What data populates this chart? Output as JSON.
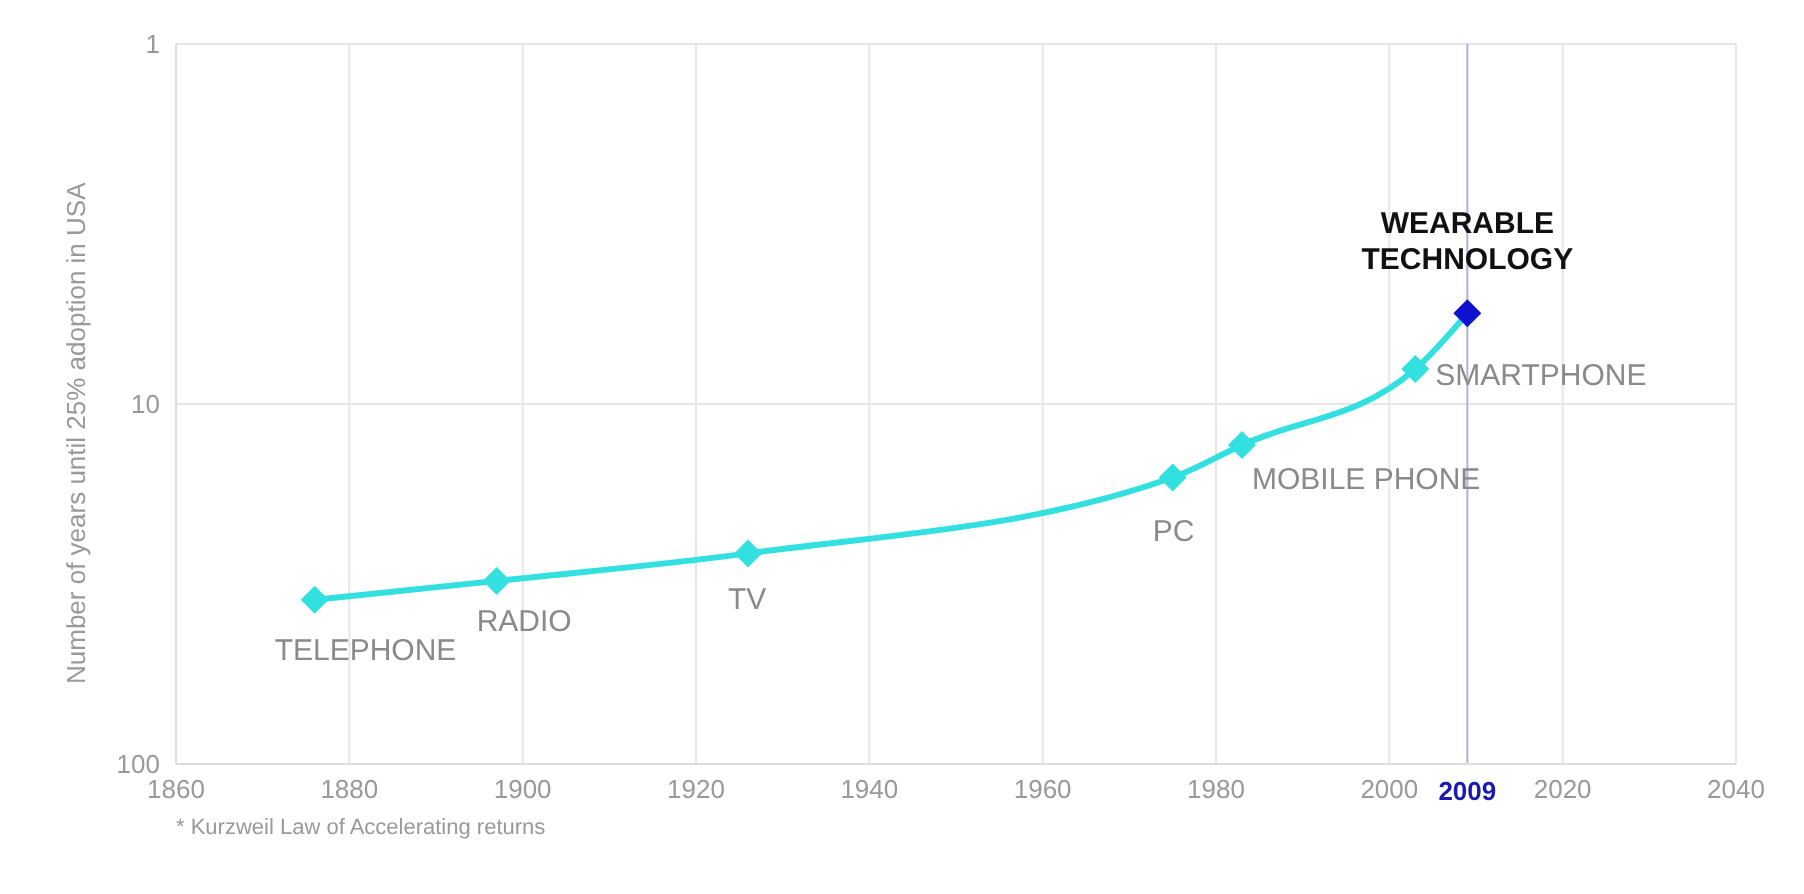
{
  "chart_data": {
    "type": "line",
    "ylabel": "Number of years until 25% adoption in USA",
    "x": [
      1876,
      1897,
      1926,
      1975,
      1983,
      2003,
      2009
    ],
    "series": [
      {
        "color": "#33e0e0",
        "colors": [
          "#33e0e0",
          "#33e0e0",
          "#33e0e0",
          "#33e0e0",
          "#33e0e0",
          "#33e0e0",
          "#1010d0"
        ],
        "values": [
          35,
          31,
          26,
          16,
          13,
          8,
          5.6
        ]
      }
    ],
    "xlim": [
      1860,
      2040
    ],
    "xticks": [
      1860,
      1880,
      1900,
      1920,
      1940,
      1960,
      1980,
      2000,
      2020,
      2040
    ],
    "ylim": [
      100,
      1
    ],
    "yticks": [
      1,
      10,
      100
    ],
    "log": "y",
    "grid": true,
    "marker": "diamond",
    "line_style": "solid",
    "ref_lines": [
      {
        "axis": "x",
        "value": 2009,
        "label": "2009",
        "color": "#b0b0e8"
      }
    ],
    "annotations": [
      {
        "text": "TELEPHONE",
        "x": 1876,
        "y": 35
      },
      {
        "text": "RADIO",
        "x": 1897,
        "y": 31
      },
      {
        "text": "TV",
        "x": 1926,
        "y": 26
      },
      {
        "text": "PC",
        "x": 1975,
        "y": 16
      },
      {
        "text": "MOBILE PHONE",
        "x": 1983,
        "y": 13
      },
      {
        "text": "SMARTPHONE",
        "x": 2003,
        "y": 8
      },
      {
        "text": "WEARABLE TECHNOLOGY",
        "x": 2009,
        "y": 5.6
      },
      "* Kurzweil Law of Accelerating returns"
    ]
  }
}
